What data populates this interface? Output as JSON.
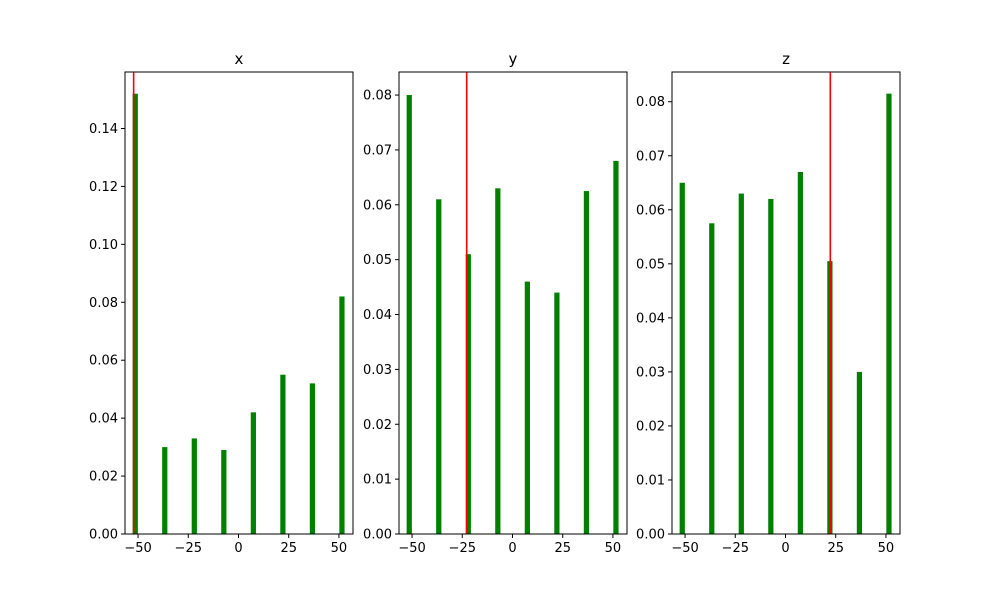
{
  "chart_data": [
    {
      "type": "bar",
      "title": "x",
      "xlabel": "",
      "ylabel": "",
      "xlim": [
        -56.5,
        57
      ],
      "ylim": [
        0,
        0.1595
      ],
      "xticks": [
        -50,
        -25,
        0,
        25,
        50
      ],
      "xtick_labels": [
        "−50",
        "−25",
        "0",
        "25",
        "50"
      ],
      "yticks": [
        0,
        0.02,
        0.04,
        0.06,
        0.08,
        0.1,
        0.12,
        0.14
      ],
      "ytick_labels": [
        "0.00",
        "0.02",
        "0.04",
        "0.06",
        "0.08",
        "0.10",
        "0.12",
        "0.14"
      ],
      "bar_width": 2.6,
      "x": [
        -51.4,
        -36.7,
        -22.0,
        -7.3,
        7.4,
        22.1,
        36.8,
        51.5
      ],
      "values": [
        0.152,
        0.03,
        0.033,
        0.029,
        0.042,
        0.055,
        0.052,
        0.082
      ],
      "vline": -52.2,
      "bar_color": "#008000",
      "vline_color": "#ff0000"
    },
    {
      "type": "bar",
      "title": "y",
      "xlabel": "",
      "ylabel": "",
      "xlim": [
        -56.5,
        57
      ],
      "ylim": [
        0,
        0.0842
      ],
      "xticks": [
        -50,
        -25,
        0,
        25,
        50
      ],
      "xtick_labels": [
        "−50",
        "−25",
        "0",
        "25",
        "50"
      ],
      "yticks": [
        0,
        0.01,
        0.02,
        0.03,
        0.04,
        0.05,
        0.06,
        0.07,
        0.08
      ],
      "ytick_labels": [
        "0.00",
        "0.01",
        "0.02",
        "0.03",
        "0.04",
        "0.05",
        "0.06",
        "0.07",
        "0.08"
      ],
      "bar_width": 2.6,
      "x": [
        -51.4,
        -36.7,
        -22.0,
        -7.3,
        7.4,
        22.1,
        36.8,
        51.5
      ],
      "values": [
        0.08,
        0.061,
        0.051,
        0.063,
        0.046,
        0.044,
        0.0625,
        0.068
      ],
      "vline": -22.8,
      "bar_color": "#008000",
      "vline_color": "#ff0000"
    },
    {
      "type": "bar",
      "title": "z",
      "xlabel": "",
      "ylabel": "",
      "xlim": [
        -56.5,
        57
      ],
      "ylim": [
        0,
        0.0855
      ],
      "xticks": [
        -50,
        -25,
        0,
        25,
        50
      ],
      "xtick_labels": [
        "−50",
        "−25",
        "0",
        "25",
        "50"
      ],
      "yticks": [
        0,
        0.01,
        0.02,
        0.03,
        0.04,
        0.05,
        0.06,
        0.07,
        0.08
      ],
      "ytick_labels": [
        "0.00",
        "0.01",
        "0.02",
        "0.03",
        "0.04",
        "0.05",
        "0.06",
        "0.07",
        "0.08"
      ],
      "bar_width": 2.6,
      "x": [
        -51.4,
        -36.7,
        -22.0,
        -7.3,
        7.4,
        22.1,
        36.8,
        51.5
      ],
      "values": [
        0.065,
        0.0575,
        0.063,
        0.062,
        0.067,
        0.0505,
        0.03,
        0.0815
      ],
      "vline": 22.3,
      "bar_color": "#008000",
      "vline_color": "#ff0000"
    }
  ]
}
